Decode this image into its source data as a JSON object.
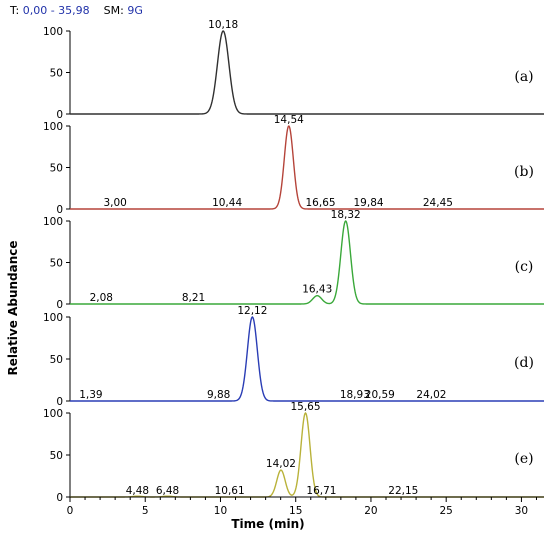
{
  "header": {
    "t_label": "T:",
    "t_value": "0,00 - 35,98",
    "sm_label": "SM:",
    "sm_value": "9G"
  },
  "chart_data": {
    "type": "line",
    "xlabel": "Time (min)",
    "ylabel": "Relative Abundance",
    "xlim": [
      0,
      31.5
    ],
    "x_ticks": [
      0,
      5,
      10,
      15,
      20,
      25,
      30
    ],
    "ylim": [
      0,
      100
    ],
    "y_ticks": [
      0,
      50,
      100
    ],
    "panels": [
      {
        "label": "(a)",
        "color": "#303030",
        "peaks": [
          {
            "rt": 10.18,
            "height": 100,
            "width": 0.38
          }
        ],
        "annotations": [
          {
            "x": 10.18,
            "text": "10,18",
            "y": 100
          }
        ]
      },
      {
        "label": "(b)",
        "color": "#b5443a",
        "peaks": [
          {
            "rt": 14.54,
            "height": 100,
            "width": 0.3
          }
        ],
        "annotations": [
          {
            "x": 3.0,
            "text": "3,00",
            "y": 0
          },
          {
            "x": 10.44,
            "text": "10,44",
            "y": 0
          },
          {
            "x": 14.54,
            "text": "14,54",
            "y": 100
          },
          {
            "x": 16.65,
            "text": "16,65",
            "y": 0
          },
          {
            "x": 19.84,
            "text": "19,84",
            "y": 0
          },
          {
            "x": 24.45,
            "text": "24,45",
            "y": 0
          }
        ]
      },
      {
        "label": "(c)",
        "color": "#3aa83a",
        "peaks": [
          {
            "rt": 16.43,
            "height": 10,
            "width": 0.3
          },
          {
            "rt": 18.32,
            "height": 100,
            "width": 0.32
          }
        ],
        "annotations": [
          {
            "x": 2.08,
            "text": "2,08",
            "y": 0
          },
          {
            "x": 8.21,
            "text": "8,21",
            "y": 0
          },
          {
            "x": 16.43,
            "text": "16,43",
            "y": 10
          },
          {
            "x": 18.32,
            "text": "18,32",
            "y": 100
          }
        ]
      },
      {
        "label": "(d)",
        "color": "#2a3db5",
        "peaks": [
          {
            "rt": 12.12,
            "height": 100,
            "width": 0.33
          }
        ],
        "annotations": [
          {
            "x": 1.39,
            "text": "1,39",
            "y": 0
          },
          {
            "x": 9.88,
            "text": "9,88",
            "y": 0
          },
          {
            "x": 12.12,
            "text": "12,12",
            "y": 100
          },
          {
            "x": 18.93,
            "text": "18,93",
            "y": 0
          },
          {
            "x": 20.59,
            "text": "20,59",
            "y": 0
          },
          {
            "x": 24.02,
            "text": "24,02",
            "y": 0
          }
        ]
      },
      {
        "label": "(e)",
        "color": "#b9b23a",
        "peaks": [
          {
            "rt": 4.48,
            "height": 1,
            "width": 0.3
          },
          {
            "rt": 6.48,
            "height": 1,
            "width": 0.3
          },
          {
            "rt": 14.02,
            "height": 32,
            "width": 0.28
          },
          {
            "rt": 15.65,
            "height": 100,
            "width": 0.3
          }
        ],
        "annotations": [
          {
            "x": 4.48,
            "text": "4,48",
            "y": 0
          },
          {
            "x": 6.48,
            "text": "6,48",
            "y": 0
          },
          {
            "x": 10.61,
            "text": "10,61",
            "y": 0
          },
          {
            "x": 14.02,
            "text": "14,02",
            "y": 32
          },
          {
            "x": 15.65,
            "text": "15,65",
            "y": 100
          },
          {
            "x": 16.71,
            "text": "16,71",
            "y": 0
          },
          {
            "x": 22.15,
            "text": "22,15",
            "y": 0
          }
        ]
      }
    ]
  }
}
